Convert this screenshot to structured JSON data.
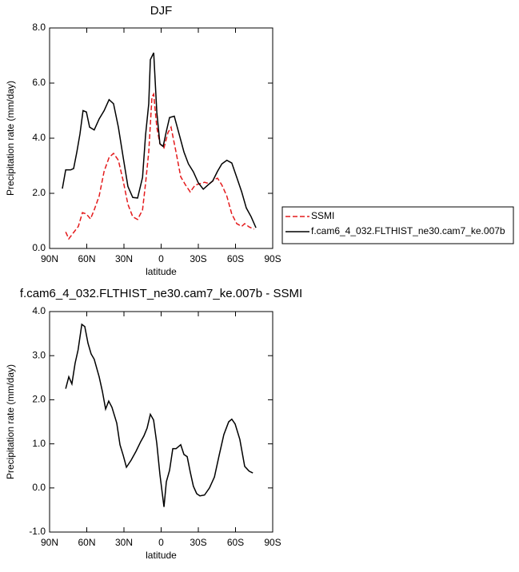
{
  "chart_data": [
    {
      "type": "line",
      "title": "DJF",
      "x_label": "latitude",
      "y_label": "Precipitation rate (mm/day)",
      "xlim": [
        90,
        -90
      ],
      "xticks": [
        {
          "value": 90,
          "label": "90N"
        },
        {
          "value": 60,
          "label": "60N"
        },
        {
          "value": 30,
          "label": "30N"
        },
        {
          "value": 0,
          "label": "0"
        },
        {
          "value": -30,
          "label": "30S"
        },
        {
          "value": -60,
          "label": "60S"
        },
        {
          "value": -90,
          "label": "90S"
        }
      ],
      "ylim": [
        0,
        8
      ],
      "yticks": [
        {
          "value": 0,
          "label": "0.0"
        },
        {
          "value": 2,
          "label": "2.0"
        },
        {
          "value": 4,
          "label": "4.0"
        },
        {
          "value": 6,
          "label": "6.0"
        },
        {
          "value": 8,
          "label": "8.0"
        }
      ],
      "legend": "right",
      "series": [
        {
          "name": "SSMI",
          "color": "#e41a1c",
          "dash": true,
          "x": [
            77,
            74.5,
            70.6,
            66.8,
            63.5,
            60.3,
            57,
            54,
            50,
            46,
            42,
            38.4,
            34.5,
            30.6,
            26.8,
            22.9,
            19,
            15,
            12.6,
            10,
            7.4,
            6,
            3.5,
            1,
            -2.3,
            -5.5,
            -8,
            -12,
            -15.8,
            -19.7,
            -23.5,
            -27.4,
            -31.3,
            -35,
            -39,
            -43,
            -45.5,
            -49,
            -53,
            -57,
            -61,
            -65,
            -67.4,
            -71,
            -75
          ],
          "values": [
            0.6,
            0.35,
            0.58,
            0.8,
            1.3,
            1.25,
            1.07,
            1.4,
            1.9,
            2.8,
            3.3,
            3.45,
            3.2,
            2.45,
            1.6,
            1.15,
            1.05,
            1.4,
            2.35,
            3.5,
            5.5,
            5.6,
            4.4,
            3.8,
            3.65,
            4.2,
            4.4,
            3.5,
            2.6,
            2.3,
            2.05,
            2.3,
            2.35,
            2.4,
            2.35,
            2.5,
            2.55,
            2.3,
            1.9,
            1.25,
            0.9,
            0.8,
            0.9,
            0.78,
            0.7
          ]
        },
        {
          "name": "f.cam6_4_032.FLTHIST_ne30.cam7_ke.007b",
          "color": "#000000",
          "dash": false,
          "x": [
            79.7,
            77,
            73,
            70.6,
            68,
            65.5,
            63,
            60.3,
            57.7,
            54,
            50,
            46,
            42,
            38.4,
            34.5,
            30.6,
            26.8,
            22.9,
            19,
            15,
            12.6,
            10,
            8.7,
            6,
            3.5,
            1,
            -1.6,
            -4.2,
            -6.8,
            -10.6,
            -14.5,
            -18.4,
            -22,
            -26,
            -30,
            -34,
            -37.7,
            -41.6,
            -45.5,
            -49,
            -53,
            -57,
            -61,
            -65,
            -68.7,
            -72.6,
            -76.5
          ],
          "values": [
            2.17,
            2.85,
            2.85,
            2.9,
            3.5,
            4.15,
            5.0,
            4.95,
            4.4,
            4.3,
            4.7,
            5.0,
            5.4,
            5.25,
            4.4,
            3.3,
            2.25,
            1.85,
            1.83,
            2.58,
            4.1,
            5.25,
            6.85,
            7.1,
            4.95,
            3.8,
            3.7,
            4.25,
            4.75,
            4.8,
            4.15,
            3.5,
            3.07,
            2.78,
            2.38,
            2.15,
            2.3,
            2.45,
            2.8,
            3.07,
            3.2,
            3.1,
            2.58,
            2.05,
            1.47,
            1.15,
            0.75
          ]
        }
      ]
    },
    {
      "type": "line",
      "title": "f.cam6_4_032.FLTHIST_ne30.cam7_ke.007b - SSMI",
      "x_label": "latitude",
      "y_label": "Precipitation rate (mm/day)",
      "xlim": [
        90,
        -90
      ],
      "xticks": [
        {
          "value": 90,
          "label": "90N"
        },
        {
          "value": 60,
          "label": "60N"
        },
        {
          "value": 30,
          "label": "30N"
        },
        {
          "value": 0,
          "label": "0"
        },
        {
          "value": -30,
          "label": "30S"
        },
        {
          "value": -60,
          "label": "60S"
        },
        {
          "value": -90,
          "label": "90S"
        }
      ],
      "ylim": [
        -1,
        4
      ],
      "yticks": [
        {
          "value": -1,
          "label": "-1.0"
        },
        {
          "value": 0,
          "label": "0.0"
        },
        {
          "value": 1,
          "label": "1.0"
        },
        {
          "value": 2,
          "label": "2.0"
        },
        {
          "value": 3,
          "label": "3.0"
        },
        {
          "value": 4,
          "label": "4.0"
        }
      ],
      "series": [
        {
          "color": "#000000",
          "dash": false,
          "x": [
            77,
            74.5,
            72,
            69.4,
            67,
            64,
            61.6,
            59,
            56.5,
            54,
            50,
            47.4,
            44.8,
            42.3,
            39.7,
            35.8,
            33.2,
            30.6,
            28,
            24.2,
            20.3,
            16.5,
            13.9,
            11.3,
            8.7,
            6.1,
            3.5,
            1,
            -2.3,
            -4.2,
            -6.8,
            -9.4,
            -12,
            -15.8,
            -18.4,
            -21,
            -23.5,
            -26,
            -28.7,
            -31.3,
            -35,
            -39,
            -43,
            -46.8,
            -50.6,
            -54.5,
            -57,
            -59.7,
            -63.5,
            -67.4,
            -71,
            -74
          ],
          "values": [
            2.25,
            2.52,
            2.36,
            2.83,
            3.13,
            3.71,
            3.66,
            3.28,
            3.04,
            2.92,
            2.52,
            2.19,
            1.79,
            1.97,
            1.83,
            1.47,
            0.98,
            0.74,
            0.47,
            0.63,
            0.83,
            1.05,
            1.18,
            1.36,
            1.67,
            1.54,
            1.01,
            0.31,
            -0.43,
            0.14,
            0.4,
            0.89,
            0.89,
            0.98,
            0.76,
            0.71,
            0.36,
            0.04,
            -0.13,
            -0.18,
            -0.16,
            0.0,
            0.25,
            0.74,
            1.21,
            1.5,
            1.56,
            1.45,
            1.1,
            0.49,
            0.38,
            0.34
          ]
        }
      ]
    }
  ]
}
